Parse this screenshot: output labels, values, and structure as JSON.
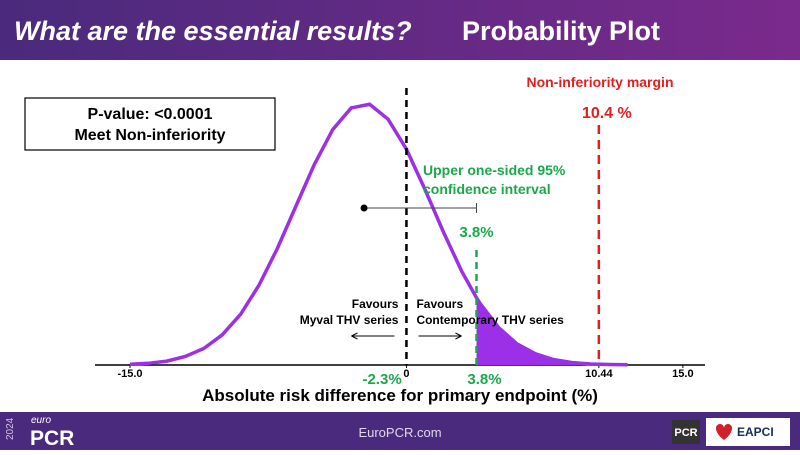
{
  "header": {
    "title_italic": "What are the essential results?",
    "title": "Probability Plot"
  },
  "result_box": {
    "line1": "P-value: <0.0001",
    "line2": "Meet Non-inferiority"
  },
  "chart_data": {
    "type": "density",
    "xlabel": "Absolute risk difference for primary endpoint (%)",
    "xlim": [
      -16.9,
      16.2
    ],
    "xticks": [
      {
        "value": -15,
        "label": "-15.0"
      },
      0,
      {
        "value": 10.44,
        "label": "10.44"
      },
      {
        "value": 15,
        "label": "15.0"
      }
    ],
    "ylim": [
      0,
      11
    ],
    "color": "#9b30e6",
    "curve": {
      "x": [
        -15,
        -14,
        -13,
        -12,
        -11,
        -10,
        -9,
        -8,
        -7,
        -6,
        -5,
        -4,
        -3,
        -2,
        -1,
        0,
        1,
        2,
        3,
        3.8,
        4,
        5,
        6,
        7,
        8,
        9,
        10,
        11,
        12
      ],
      "y": [
        0.03,
        0.07,
        0.16,
        0.35,
        0.68,
        1.24,
        2.09,
        3.29,
        4.81,
        6.54,
        8.26,
        9.7,
        10.59,
        10.74,
        10.13,
        8.89,
        7.24,
        5.49,
        3.86,
        2.77,
        2.53,
        1.54,
        0.87,
        0.46,
        0.22,
        0.1,
        0.04,
        0.02,
        0.01
      ]
    },
    "mean": {
      "value": -2.3,
      "label": "-2.3%"
    },
    "upper_ci": {
      "value": 3.8,
      "label": "3.8%",
      "title_line1": "Upper one-sided 95%",
      "title_line2": "confidence interval",
      "color": "#1aa84b"
    },
    "margin": {
      "value": 10.44,
      "label": "10.4 %",
      "title": "Non-inferiority margin",
      "color": "#e02020"
    },
    "favours_left": [
      "Favours",
      "Myval THV series"
    ],
    "favours_right": [
      "Favours",
      "Contemporary THV series"
    ]
  },
  "footer": {
    "year": "2024",
    "brand_small": "euro",
    "brand": "PCR",
    "url": "EuroPCR.com",
    "logo1": "PCR",
    "logo2": "EAPCI"
  }
}
